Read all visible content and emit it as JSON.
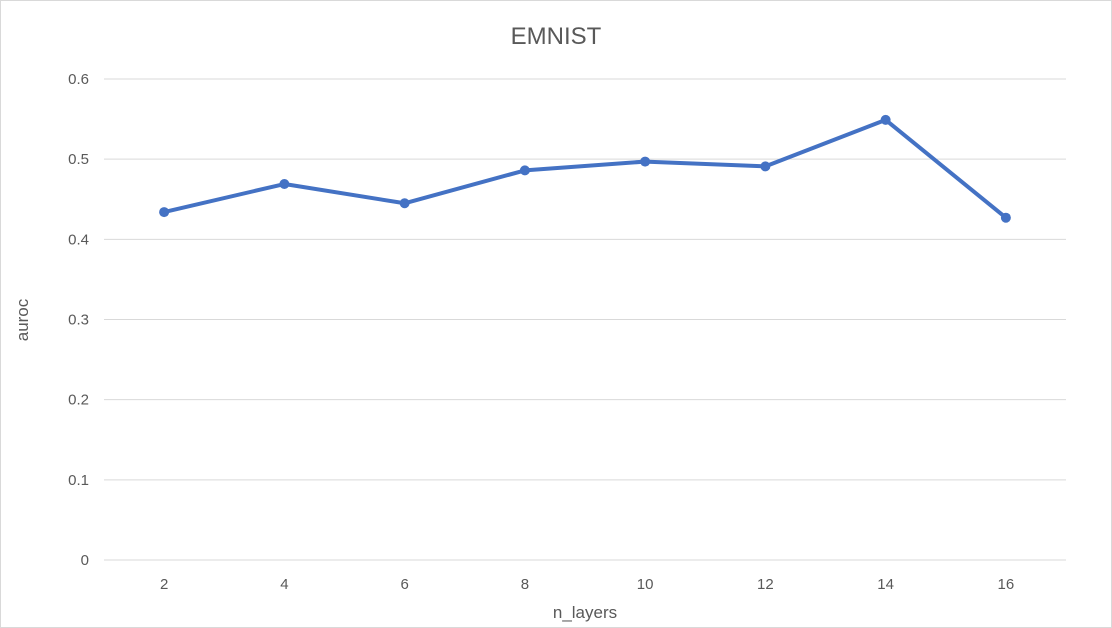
{
  "chart_data": {
    "type": "line",
    "title": "EMNIST",
    "xlabel": "n_layers",
    "ylabel": "auroc",
    "categories": [
      "2",
      "4",
      "6",
      "8",
      "10",
      "12",
      "14",
      "16"
    ],
    "series": [
      {
        "values": [
          0.434,
          0.469,
          0.445,
          0.486,
          0.497,
          0.491,
          0.549,
          0.427
        ],
        "color": "#4472c4"
      }
    ],
    "ylim": [
      0,
      0.6
    ],
    "yticks": [
      "0",
      "0.1",
      "0.2",
      "0.3",
      "0.4",
      "0.5",
      "0.6"
    ],
    "grid": true,
    "legend": "none",
    "colors": {
      "gridline": "#d9d9d9",
      "text": "#595959",
      "series": "#4472c4"
    }
  }
}
